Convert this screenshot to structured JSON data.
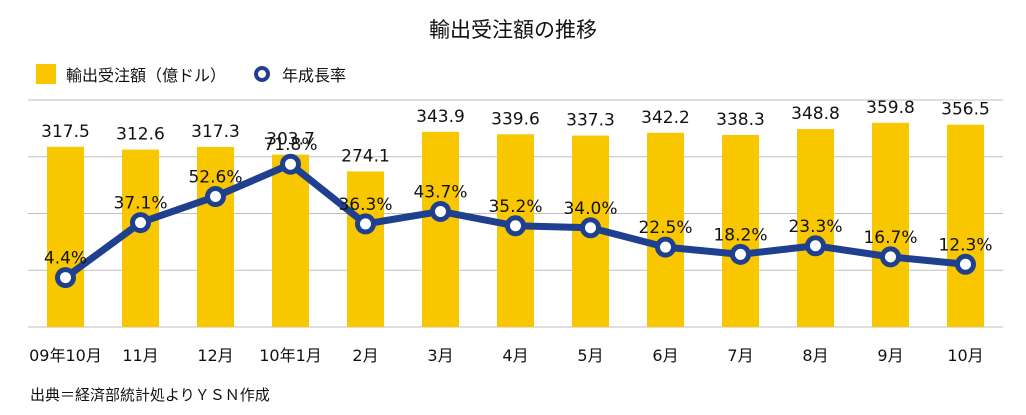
{
  "title": "輸出受注額の推移",
  "legend": {
    "bar_label": "輸出受注額（億ドル）",
    "line_label": "年成長率"
  },
  "source": "出典＝経済部統計処よりＹＳＮ作成",
  "colors": {
    "bar": "#F9C700",
    "line": "#1F3F8F",
    "marker_fill": "#ffffff",
    "grid": "#bfbfbf"
  },
  "chart_data": {
    "type": "bar+line",
    "title": "輸出受注額の推移",
    "categories": [
      "09年10月",
      "11月",
      "12月",
      "10年1月",
      "2月",
      "3月",
      "4月",
      "5月",
      "6月",
      "7月",
      "8月",
      "9月",
      "10月"
    ],
    "series": [
      {
        "name": "輸出受注額（億ドル）",
        "type": "bar",
        "values": [
          317.5,
          312.6,
          317.3,
          303.7,
          274.1,
          343.9,
          339.6,
          337.3,
          342.2,
          338.3,
          348.8,
          359.8,
          356.5
        ],
        "labels": [
          "317.5",
          "312.6",
          "317.3",
          "303.7",
          "274.1",
          "343.9",
          "339.6",
          "337.3",
          "342.2",
          "338.3",
          "348.8",
          "359.8",
          "356.5"
        ]
      },
      {
        "name": "年成長率",
        "type": "line",
        "values": [
          4.4,
          37.1,
          52.6,
          71.8,
          36.3,
          43.7,
          35.2,
          34.0,
          22.5,
          18.2,
          23.3,
          16.7,
          12.3
        ],
        "labels": [
          "4.4%",
          "37.1%",
          "52.6%",
          "71.8%",
          "36.3%",
          "43.7%",
          "35.2%",
          "34.0%",
          "22.5%",
          "18.2%",
          "23.3%",
          "16.7%",
          "12.3%"
        ]
      }
    ],
    "grid": true,
    "legend_position": "top-left",
    "y_axis_labels_shown": false
  }
}
